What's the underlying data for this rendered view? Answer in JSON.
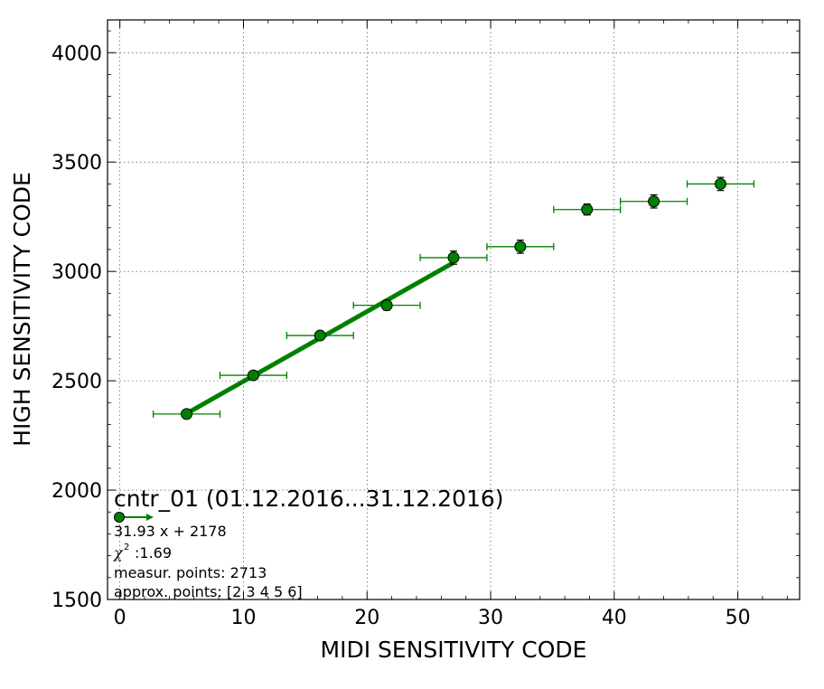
{
  "chart_data": {
    "type": "scatter",
    "xlabel": "MIDI SENSITIVITY CODE",
    "ylabel": "HIGH SENSITIVITY CODE",
    "xlim": [
      -1,
      55
    ],
    "ylim": [
      1500,
      4150
    ],
    "xticks": [
      0,
      10,
      20,
      30,
      40,
      50
    ],
    "yticks": [
      1500,
      2000,
      2500,
      3000,
      3500,
      4000
    ],
    "grid": true,
    "colors": {
      "series": "#008000",
      "marker_edge": "#000000"
    },
    "series": [
      {
        "points": [
          {
            "x": 5.4,
            "y": 2348,
            "xerr": 2.7,
            "yerr": 10
          },
          {
            "x": 10.8,
            "y": 2525,
            "xerr": 2.7,
            "yerr": 15
          },
          {
            "x": 16.2,
            "y": 2707,
            "xerr": 2.7,
            "yerr": 15
          },
          {
            "x": 21.6,
            "y": 2845,
            "xerr": 2.7,
            "yerr": 22
          },
          {
            "x": 27.0,
            "y": 3063,
            "xerr": 2.7,
            "yerr": 30
          },
          {
            "x": 32.4,
            "y": 3113,
            "xerr": 2.7,
            "yerr": 30
          },
          {
            "x": 37.8,
            "y": 3283,
            "xerr": 2.7,
            "yerr": 25
          },
          {
            "x": 43.2,
            "y": 3320,
            "xerr": 2.7,
            "yerr": 30
          },
          {
            "x": 48.6,
            "y": 3400,
            "xerr": 2.7,
            "yerr": 30
          }
        ]
      }
    ],
    "fit": {
      "slope": 31.93,
      "intercept": 2178,
      "x_range": [
        5.4,
        27.0
      ]
    },
    "annotation": {
      "title": "cntr_01 (01.12.2016...31.12.2016)",
      "equation": "31.93 x + 2178",
      "chi2": ":1.69",
      "measur_points": "measur. points: 2713",
      "approx_points": "approx. points: [2 3 4 5 6]"
    }
  }
}
